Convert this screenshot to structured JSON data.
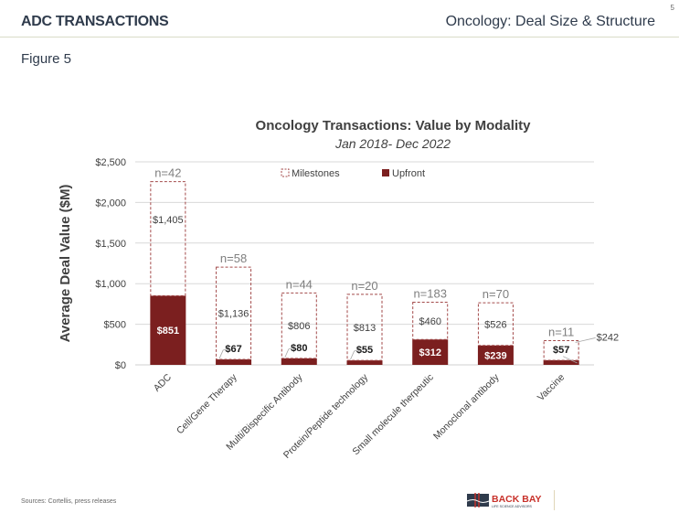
{
  "header": {
    "section_title": "ADC TRANSACTIONS",
    "page_title": "Oncology: Deal Size & Structure",
    "page_number": "5"
  },
  "figure_label": "Figure 5",
  "footer": {
    "sources": "Sources: Cortellis, press releases",
    "logo_name": "BACK BAY",
    "logo_tagline": "LIFE SCIENCE ADVISORS"
  },
  "colors": {
    "upfront": "#7b1f1f",
    "milestones_border": "#a34a4a",
    "text_dark": "#2f3b4c",
    "grid": "#d9d9d9"
  },
  "chart_data": {
    "type": "bar",
    "stacked": true,
    "title": "Oncology Transactions: Value by Modality",
    "subtitle": "Jan 2018- Dec 2022",
    "xlabel": "",
    "ylabel": "Average Deal Value ($M)",
    "ylim": [
      0,
      2500
    ],
    "yticks": [
      0,
      500,
      1000,
      1500,
      2000,
      2500
    ],
    "ytick_labels": [
      "$0",
      "$500",
      "$1,000",
      "$1,500",
      "$2,000",
      "$2,500"
    ],
    "grid": true,
    "legend": {
      "position": "top",
      "entries": [
        "Milestones",
        "Upfront"
      ]
    },
    "categories": [
      "ADC",
      "Cell/Gene Therapy",
      "Multi/Bispecific Antibody",
      "Protein/Peptide technology",
      "Small molecule therpeutic",
      "Monoclonal antibody",
      "Vaccine"
    ],
    "counts": [
      "n=42",
      "n=58",
      "n=44",
      "n=20",
      "n=183",
      "n=70",
      "n=11"
    ],
    "series": [
      {
        "name": "Upfront",
        "values": [
          851,
          67,
          80,
          55,
          312,
          239,
          57
        ],
        "labels": [
          "$851",
          "$67",
          "$80",
          "$55",
          "$312",
          "$239",
          "$57"
        ]
      },
      {
        "name": "Milestones",
        "values": [
          1405,
          1136,
          806,
          813,
          460,
          526,
          242
        ],
        "labels": [
          "$1,405",
          "$1,136",
          "$806",
          "$813",
          "$460",
          "$526",
          "$242"
        ]
      }
    ]
  }
}
